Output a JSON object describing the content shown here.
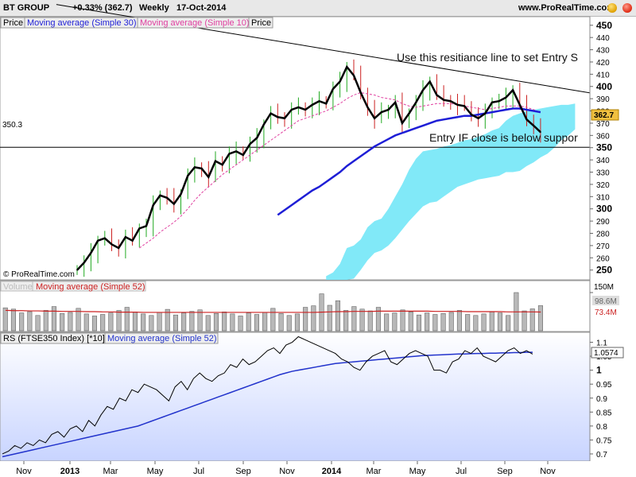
{
  "header": {
    "symbol": "BT GROUP",
    "change": "+0.33% (362.7)",
    "period": "Weekly",
    "date": "17-Oct-2014",
    "site": "www.ProRealTime.com"
  },
  "price_panel": {
    "legend": [
      "Price",
      "Moving average (Simple 30)",
      "Moving average (Simple 10)",
      "Price"
    ],
    "support_label": "350.3",
    "last_price_label": "362.7",
    "copyright": "© ProRealTime.com",
    "annotation_resistance": "Use this resitiance line to set Entry S",
    "annotation_entry": "Entry IF close is below suppor"
  },
  "volume_panel": {
    "legend": [
      "Volume",
      "Moving average (Simple 52)"
    ],
    "axis_top": "150M",
    "volume_label": "98.6M",
    "ma_label": "73.4M"
  },
  "rs_panel": {
    "legend": [
      "RS (FTSE350 Index) [*10]",
      "Moving average (Simple 52)"
    ],
    "last_label": "1.0574"
  },
  "colors": {
    "ma30": "#1e1ed6",
    "ma10": "#e040a0",
    "cloud": "#7ae8f8",
    "volume_ma": "#cc2222",
    "rs_line": "#000000",
    "rs_ma": "#2233cc",
    "last_price_bg": "#f0c040"
  },
  "chart_data": [
    {
      "type": "line",
      "series": [
        {
          "name": "Price",
          "values": [
            250,
            256,
            264,
            274,
            276,
            271,
            268,
            277,
            274,
            284,
            286,
            303,
            311,
            309,
            304,
            312,
            327,
            334,
            333,
            326,
            339,
            336,
            345,
            347,
            344,
            353,
            358,
            369,
            378,
            375,
            374,
            381,
            383,
            381,
            385,
            388,
            386,
            398,
            404,
            416,
            409,
            395,
            383,
            374,
            379,
            381,
            387,
            370,
            378,
            387,
            397,
            404,
            393,
            389,
            388,
            385,
            384,
            377,
            374,
            378,
            387,
            388,
            391,
            397,
            385,
            373,
            368,
            362.7
          ]
        },
        {
          "name": "Moving average (Simple 30)",
          "values": [
            null,
            null,
            null,
            null,
            null,
            null,
            null,
            null,
            null,
            null,
            null,
            null,
            null,
            null,
            null,
            null,
            null,
            null,
            null,
            null,
            null,
            null,
            null,
            null,
            null,
            null,
            null,
            null,
            null,
            295,
            299,
            303,
            307,
            311,
            315,
            318,
            322,
            326,
            330,
            335,
            339,
            343,
            347,
            351,
            354,
            357,
            360,
            362,
            364,
            366,
            368,
            370,
            372,
            373,
            374,
            375,
            376,
            376,
            377,
            378,
            379,
            380,
            381,
            382,
            382,
            381,
            380,
            379
          ]
        },
        {
          "name": "Moving average (Simple 10)",
          "values": [
            null,
            null,
            null,
            null,
            null,
            null,
            null,
            null,
            null,
            268,
            272,
            276,
            281,
            285,
            289,
            294,
            300,
            307,
            313,
            318,
            323,
            328,
            332,
            336,
            340,
            344,
            348,
            352,
            356,
            360,
            364,
            368,
            372,
            374,
            376,
            378,
            380,
            383,
            386,
            390,
            393,
            395,
            394,
            393,
            391,
            390,
            389,
            386,
            384,
            383,
            384,
            385,
            386,
            386,
            386,
            385,
            384,
            383,
            382,
            381,
            382,
            383,
            384,
            384,
            384,
            383,
            381,
            379
          ]
        }
      ],
      "x_tick_labels": [
        "Nov",
        "2013",
        "Mar",
        "May",
        "Jul",
        "Sep",
        "Nov",
        "2014",
        "Mar",
        "May",
        "Jul",
        "Sep",
        "Nov"
      ],
      "y_tick_labels": [
        "250",
        "260",
        "270",
        "280",
        "290",
        "300",
        "310",
        "320",
        "330",
        "340",
        "350",
        "360",
        "370",
        "380",
        "390",
        "400",
        "410",
        "420",
        "430",
        "440",
        "450"
      ],
      "ylim": [
        242,
        457
      ],
      "support_level": 350.3,
      "cloud_top": [
        null,
        null,
        null,
        null,
        null,
        null,
        null,
        null,
        null,
        null,
        null,
        null,
        null,
        null,
        null,
        null,
        null,
        null,
        null,
        null,
        null,
        null,
        null,
        null,
        null,
        null,
        null,
        null,
        null,
        null,
        null,
        null,
        null,
        null,
        null,
        null,
        245,
        248,
        255,
        268,
        270,
        275,
        285,
        290,
        292,
        300,
        310,
        320,
        332,
        341,
        347,
        348,
        349,
        351,
        352,
        354,
        356,
        357,
        359,
        361,
        364,
        366,
        372,
        376,
        378,
        380,
        381,
        382,
        383,
        384,
        385,
        385,
        386
      ],
      "cloud_bottom": [
        null,
        null,
        null,
        null,
        null,
        null,
        null,
        null,
        null,
        null,
        null,
        null,
        null,
        null,
        null,
        null,
        null,
        null,
        null,
        null,
        null,
        null,
        null,
        null,
        null,
        null,
        null,
        null,
        null,
        null,
        null,
        null,
        null,
        null,
        null,
        null,
        242,
        242,
        242,
        242,
        243,
        250,
        258,
        264,
        266,
        270,
        276,
        283,
        290,
        296,
        302,
        305,
        306,
        310,
        314,
        318,
        320,
        322,
        324,
        325,
        326,
        327,
        330,
        330,
        331,
        335,
        338,
        342,
        345,
        350,
        356,
        360,
        365
      ],
      "resistance_line": {
        "from": [
          -3,
          467
        ],
        "to": [
          76,
          393
        ]
      }
    },
    {
      "type": "bar",
      "series": [
        {
          "name": "Volume",
          "values": [
            90,
            85,
            70,
            75,
            60,
            80,
            95,
            68,
            72,
            88,
            66,
            58,
            64,
            70,
            80,
            92,
            74,
            66,
            60,
            72,
            84,
            62,
            70,
            76,
            82,
            60,
            68,
            74,
            66,
            58,
            70,
            64,
            72,
            88,
            68,
            60,
            66,
            92,
            98,
            145,
            100,
            118,
            80,
            95,
            85,
            78,
            92,
            66,
            70,
            82,
            74,
            62,
            70,
            64,
            68,
            72,
            80,
            64,
            60,
            66,
            74,
            70,
            60,
            150,
            78,
            86,
            98.6
          ]
        },
        {
          "name": "Moving average (Simple 52)",
          "values": [
            80,
            79,
            79,
            78,
            78,
            77,
            77,
            76,
            76,
            76,
            75,
            75,
            74,
            74,
            73,
            73,
            73,
            72,
            72,
            72,
            72,
            72,
            72,
            72,
            72,
            72,
            72,
            72,
            72,
            72,
            72,
            72,
            72,
            72,
            72,
            72,
            72,
            72,
            72,
            73,
            74,
            75,
            75,
            76,
            76,
            76,
            77,
            77,
            77,
            77,
            77,
            77,
            77,
            76,
            76,
            76,
            76,
            75,
            75,
            75,
            75,
            75,
            74,
            74,
            74,
            74,
            73.4
          ]
        }
      ],
      "y_tick_labels": [
        "150M"
      ],
      "ylim": [
        0,
        150
      ]
    },
    {
      "type": "line",
      "series": [
        {
          "name": "RS (FTSE350 Index) [*10]",
          "values": [
            0.7,
            0.71,
            0.73,
            0.72,
            0.74,
            0.73,
            0.75,
            0.74,
            0.77,
            0.78,
            0.76,
            0.79,
            0.8,
            0.78,
            0.82,
            0.8,
            0.84,
            0.87,
            0.86,
            0.9,
            0.89,
            0.93,
            0.92,
            0.95,
            0.94,
            0.93,
            0.91,
            0.89,
            0.94,
            0.96,
            0.93,
            0.97,
            0.99,
            0.97,
            0.96,
            0.98,
            0.99,
            1.02,
            1.01,
            1.04,
            1.02,
            1.03,
            1.05,
            1.07,
            1.08,
            1.06,
            1.09,
            1.1,
            1.12,
            1.11,
            1.1,
            1.09,
            1.08,
            1.07,
            1.06,
            1.04,
            1.03,
            1.01,
            1.0,
            1.03,
            1.05,
            1.06,
            1.07,
            1.03,
            1.02,
            1.04,
            1.06,
            1.07,
            1.06,
            1.05,
            1.0,
            1.0,
            0.99,
            1.03,
            1.04,
            1.07,
            1.06,
            1.08,
            1.05,
            1.04,
            1.03,
            1.05,
            1.07,
            1.08,
            1.06,
            1.07,
            1.0574
          ]
        },
        {
          "name": "Moving average (Simple 52)",
          "values": [
            0.69,
            0.695,
            0.7,
            0.705,
            0.71,
            0.715,
            0.72,
            0.725,
            0.73,
            0.735,
            0.74,
            0.745,
            0.75,
            0.755,
            0.76,
            0.765,
            0.77,
            0.775,
            0.78,
            0.785,
            0.79,
            0.795,
            0.8,
            0.808,
            0.816,
            0.824,
            0.832,
            0.84,
            0.848,
            0.856,
            0.864,
            0.872,
            0.88,
            0.888,
            0.896,
            0.904,
            0.912,
            0.92,
            0.928,
            0.936,
            0.944,
            0.952,
            0.96,
            0.968,
            0.976,
            0.984,
            0.99,
            0.996,
            1.0,
            1.004,
            1.008,
            1.012,
            1.016,
            1.02,
            1.024,
            1.026,
            1.028,
            1.03,
            1.032,
            1.034,
            1.036,
            1.038,
            1.04,
            1.042,
            1.044,
            1.046,
            1.048,
            1.05,
            1.052,
            1.053,
            1.054,
            1.055,
            1.056,
            1.057,
            1.058,
            1.058,
            1.059,
            1.06,
            1.06,
            1.061,
            1.061,
            1.062,
            1.062,
            1.063,
            1.063,
            1.064,
            1.064
          ]
        }
      ],
      "y_tick_labels": [
        "0.7",
        "0.75",
        "0.8",
        "0.85",
        "0.9",
        "0.95",
        "1",
        "1.05",
        "1.1"
      ],
      "ylim": [
        0.68,
        1.13
      ]
    }
  ]
}
